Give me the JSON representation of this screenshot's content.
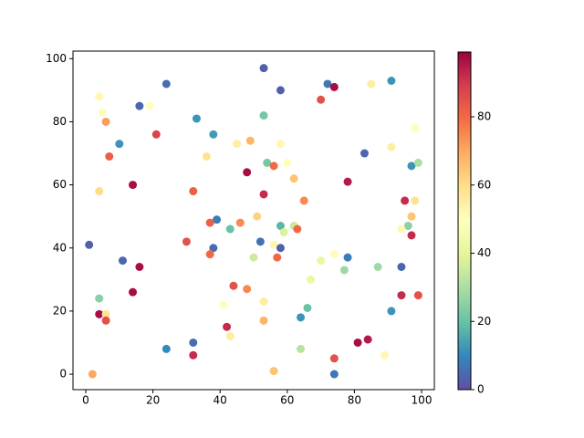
{
  "chart_data": {
    "type": "scatter",
    "x": [
      53,
      24,
      72,
      74,
      58,
      91,
      85,
      4,
      70,
      16,
      19,
      5,
      6,
      33,
      53,
      98,
      21,
      38,
      10,
      45,
      49,
      58,
      91,
      83,
      7,
      36,
      54,
      56,
      60,
      97,
      99,
      48,
      62,
      78,
      14,
      4,
      32,
      53,
      65,
      95,
      98,
      97,
      51,
      39,
      37,
      46,
      58,
      62,
      63,
      96,
      94,
      43,
      59,
      97,
      30,
      52,
      1,
      56,
      58,
      38,
      37,
      74,
      70,
      78,
      50,
      57,
      11,
      16,
      77,
      87,
      94,
      67,
      44,
      48,
      14,
      4,
      94,
      99,
      53,
      41,
      66,
      91,
      4,
      6,
      64,
      6,
      53,
      42,
      43,
      84,
      81,
      32,
      24,
      64,
      32,
      74,
      89,
      56,
      2,
      74
    ],
    "values": [
      97,
      92,
      92,
      91,
      90,
      93,
      92,
      88,
      87,
      85,
      85,
      83,
      80,
      81,
      82,
      78,
      76,
      76,
      73,
      73,
      74,
      73,
      72,
      70,
      69,
      69,
      67,
      66,
      67,
      66,
      67,
      64,
      62,
      61,
      60,
      58,
      58,
      57,
      55,
      55,
      55,
      50,
      50,
      49,
      48,
      48,
      47,
      47,
      46,
      47,
      46,
      46,
      45,
      44,
      42,
      42,
      41,
      41,
      40,
      40,
      38,
      38,
      36,
      37,
      37,
      37,
      36,
      34,
      33,
      34,
      34,
      30,
      28,
      27,
      26,
      24,
      25,
      25,
      23,
      22,
      21,
      20,
      19,
      19,
      18,
      17,
      17,
      15,
      12,
      11,
      10,
      10,
      8,
      8,
      6,
      5,
      6,
      1,
      0,
      0
    ],
    "color_values": [
      3,
      5,
      7,
      97,
      3,
      12,
      55,
      52,
      85,
      4,
      50,
      48,
      72,
      12,
      22,
      50,
      88,
      13,
      12,
      55,
      68,
      52,
      55,
      4,
      82,
      58,
      22,
      80,
      50,
      12,
      30,
      97,
      65,
      95,
      97,
      60,
      82,
      92,
      75,
      92,
      58,
      65,
      62,
      8,
      82,
      75,
      18,
      35,
      80,
      25,
      52,
      20,
      38,
      92,
      85,
      6,
      3,
      52,
      3,
      5,
      80,
      50,
      42,
      8,
      35,
      80,
      4,
      97,
      28,
      28,
      4,
      42,
      85,
      75,
      97,
      25,
      92,
      85,
      55,
      50,
      20,
      12,
      97,
      58,
      12,
      85,
      68,
      92,
      55,
      95,
      97,
      5,
      10,
      32,
      92,
      85,
      52,
      65,
      70,
      7
    ],
    "colormap": "Spectral_r",
    "xlim": [
      -3.8,
      103.8
    ],
    "ylim": [
      -4.9,
      102.4
    ],
    "xticks": [
      0,
      20,
      40,
      60,
      80,
      100
    ],
    "yticks": [
      0,
      20,
      40,
      60,
      80,
      100
    ],
    "clim": [
      0,
      99
    ],
    "cticks": [
      0,
      20,
      40,
      60,
      80
    ]
  }
}
